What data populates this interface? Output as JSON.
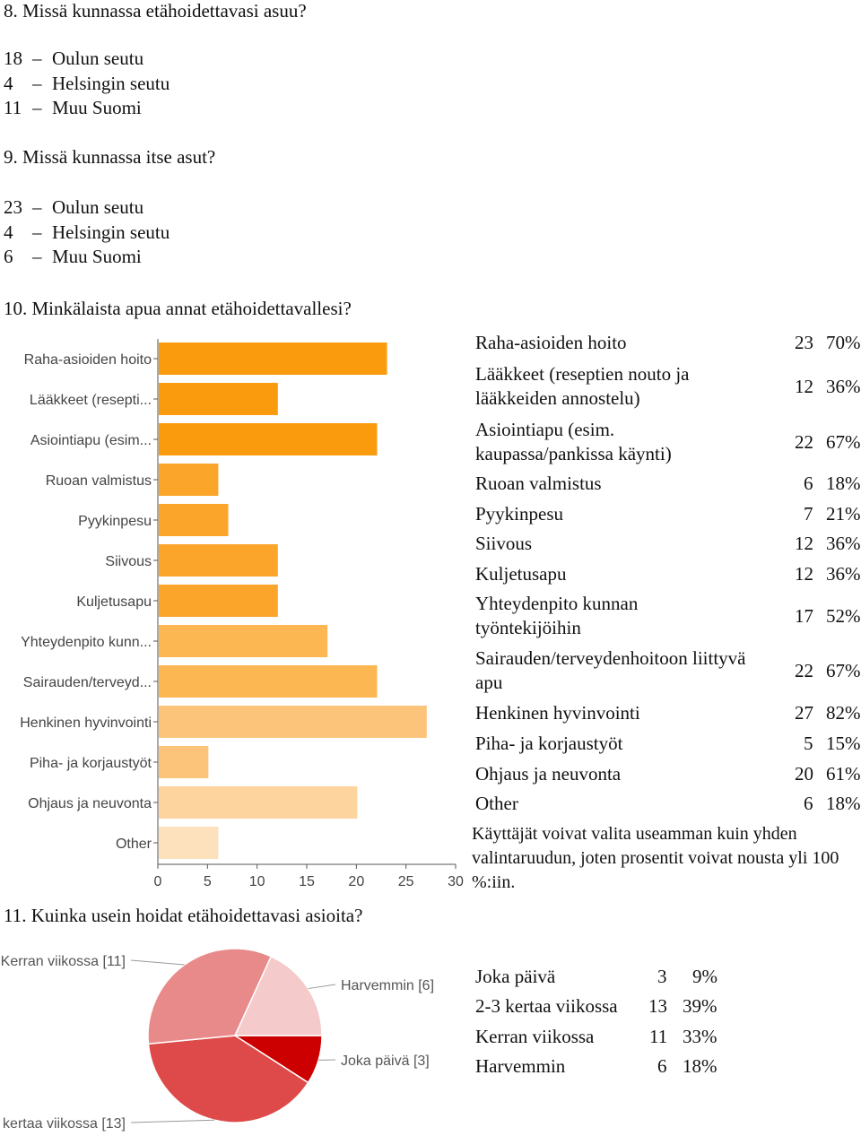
{
  "q8": {
    "title": "8. Missä kunnassa etähoidettavasi asuu?",
    "answers": [
      {
        "count": "18",
        "dash": "–",
        "label": "Oulun seutu"
      },
      {
        "count": "4",
        "dash": "–",
        "label": "Helsingin seutu"
      },
      {
        "count": "11",
        "dash": "–",
        "label": "Muu Suomi"
      }
    ]
  },
  "q9": {
    "title": "9. Missä kunnassa itse asut?",
    "answers": [
      {
        "count": "23",
        "dash": "–",
        "label": "Oulun seutu"
      },
      {
        "count": "4",
        "dash": "–",
        "label": "Helsingin seutu"
      },
      {
        "count": "6",
        "dash": "–",
        "label": "Muu Suomi"
      }
    ]
  },
  "q10": {
    "title": "10. Minkälaista apua annat etähoidettavallesi?",
    "table": [
      {
        "label": "Raha-asioiden hoito",
        "count": "23",
        "pct": "70%"
      },
      {
        "label": "Lääkkeet (reseptien nouto ja lääkkeiden annostelu)",
        "label1": "Lääkkeet (reseptien nouto ja",
        "label2": "lääkkeiden annostelu)",
        "count": "12",
        "pct": "36%"
      },
      {
        "label": "Asiointiapu (esim. kaupassa/pankissa käynti)",
        "label1": "Asiointiapu (esim.",
        "label2": "kaupassa/pankissa käynti)",
        "count": "22",
        "pct": "67%"
      },
      {
        "label": "Ruoan valmistus",
        "count": "6",
        "pct": "18%"
      },
      {
        "label": "Pyykinpesu",
        "count": "7",
        "pct": "21%"
      },
      {
        "label": "Siivous",
        "count": "12",
        "pct": "36%"
      },
      {
        "label": "Kuljetusapu",
        "count": "12",
        "pct": "36%"
      },
      {
        "label": "Yhteydenpito kunnan työntekijöihin",
        "label1": "Yhteydenpito kunnan",
        "label2": "työntekijöihin",
        "count": "17",
        "pct": "52%"
      },
      {
        "label": "Sairauden/terveydenhoitoon liittyvä apu",
        "label1": "Sairauden/terveydenhoitoon liittyvä",
        "label2": "apu",
        "count": "22",
        "pct": "67%"
      },
      {
        "label": "Henkinen hyvinvointi",
        "count": "27",
        "pct": "82%"
      },
      {
        "label": "Piha- ja korjaustyöt",
        "count": "5",
        "pct": "15%"
      },
      {
        "label": "Ohjaus ja neuvonta",
        "count": "20",
        "pct": "61%"
      },
      {
        "label": "Other",
        "count": "6",
        "pct": "18%"
      }
    ],
    "note": "Käyttäjät voivat valita useamman kuin yhden valintaruudun, joten prosentit voivat nousta yli 100 %:iin."
  },
  "q11": {
    "title": "11. Kuinka usein hoidat etähoidettavasi asioita?",
    "table": [
      {
        "label": "Joka päivä",
        "count": "3",
        "pct": "9%"
      },
      {
        "label": "2-3 kertaa viikossa",
        "count": "13",
        "pct": "39%"
      },
      {
        "label": "Kerran viikossa",
        "count": "11",
        "pct": "33%"
      },
      {
        "label": "Harvemmin",
        "count": "6",
        "pct": "18%"
      }
    ]
  },
  "chart_data": [
    {
      "type": "bar",
      "orientation": "horizontal",
      "categories": [
        "Raha-asioiden hoito",
        "Lääkkeet (resepti...",
        "Asiointiapu (esim...",
        "Ruoan valmistus",
        "Pyykinpesu",
        "Siivous",
        "Kuljetusapu",
        "Yhteydenpito kunn...",
        "Sairauden/terveyd...",
        "Henkinen hyvinvointi",
        "Piha- ja korjaustyöt",
        "Ohjaus ja neuvonta",
        "Other"
      ],
      "values": [
        23,
        12,
        22,
        6,
        7,
        12,
        12,
        17,
        22,
        27,
        5,
        20,
        6
      ],
      "xlim": [
        0,
        30
      ],
      "xticks": [
        "0",
        "5",
        "10",
        "15",
        "20",
        "25",
        "30"
      ],
      "colors": [
        "#f99b0c",
        "#f99b0c",
        "#f99b0c",
        "#fba52b",
        "#fba52b",
        "#fba52b",
        "#fba52b",
        "#fcb652",
        "#fcb652",
        "#fcc47a",
        "#fcc47a",
        "#fdd39e",
        "#fde1bc"
      ],
      "grid": false
    },
    {
      "type": "pie",
      "slices": [
        {
          "name": "Joka päivä",
          "label": "Joka päivä [3]",
          "value": 3,
          "color": "#cc0000"
        },
        {
          "name": "2-3 kertaa viikossa",
          "label": "kertaa viikossa [13]",
          "value": 13,
          "color": "#de4a4a"
        },
        {
          "name": "Kerran viikossa",
          "label": "Kerran viikossa [11]",
          "value": 11,
          "color": "#e98a8a"
        },
        {
          "name": "Harvemmin",
          "label": "Harvemmin [6]",
          "value": 6,
          "color": "#f4caca"
        }
      ]
    }
  ]
}
